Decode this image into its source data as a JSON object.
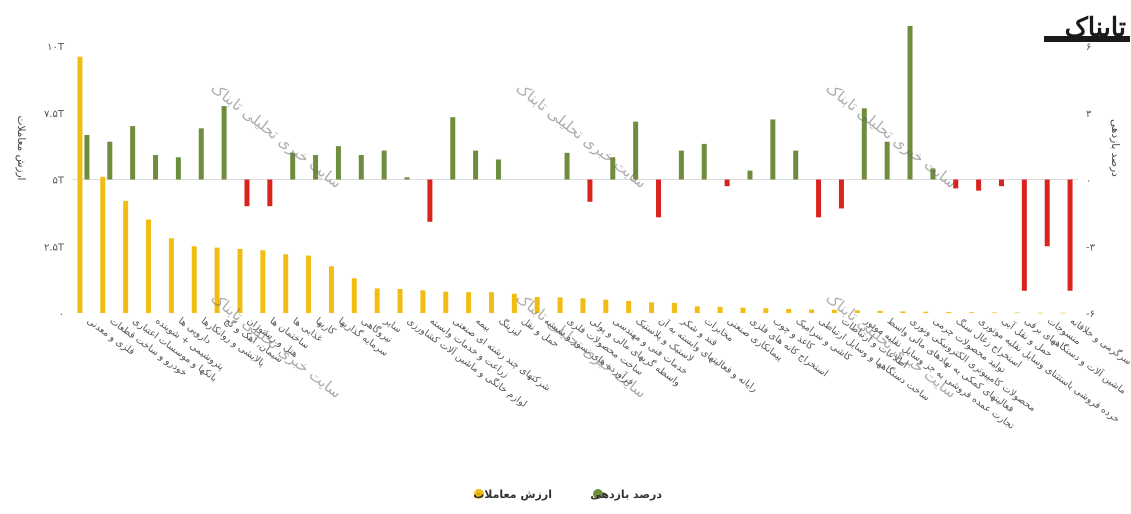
{
  "chart_data": {
    "type": "bar",
    "logo": "تابناک",
    "watermark": "سایت خبری تحلیلی تابناک",
    "ylabel_left": "ارزش معاملات",
    "ylabel_right": "درصد بازدهی",
    "y_left_ticks": [
      "۰",
      "۲.۵T",
      "۵T",
      "۷.۵T",
      "۱۰T"
    ],
    "y_left_lim": [
      0,
      10
    ],
    "y_right_ticks": [
      "-۶",
      "-۳",
      "۰",
      "۳",
      "۶"
    ],
    "y_right_lim": [
      -6,
      6
    ],
    "legend_position": "bottom",
    "categories": [
      "فلزی و معدنی",
      "خودرو و ساخت قطعات",
      "بانکها و موسسات اعتباری",
      "پتروشیمی + شوینده",
      "دارویی ها",
      "پالایشی و روانکارها",
      "سیمان، آهک و گچ",
      "هتل و رستوران",
      "ساختمان ها",
      "غذایی ها",
      "کاریها",
      "سرمایه گذاریها",
      "نیروگاهی",
      "سایر",
      "لوازم خانگی و ماشین آلات کشاورزی",
      "زراعت و خدمات وابسته",
      "شرکتهای چند رشته ای صنعتی",
      "بیمه",
      "لیزینگ",
      "حمل و نقل",
      "فرآورده های نسوز و شیشه",
      "ساخت محصولات فلزی",
      "واسطه گریهای مالی و پولی",
      "خدمات فنی و مهندسی",
      "لاستیک و پلاستیک",
      "رایانه و فعالیتهای وابسته به آن",
      "قند و شکر",
      "مخابرات",
      "پیمانکاری صنعتی",
      "استخراج کانه های فلزی",
      "کاغذ و چوب",
      "کاشی و سرامیک",
      "ساخت دستگاهها و وسایل ارتباطی",
      "اطلاعات و ارتباطات",
      "تجارت عمده فروشی به جز وسایل نقلیه موتور",
      "فعالیتهای کمکی به نهادهای مالی واسط",
      "محصولات کامپیوتری الکترونیکی ونوری",
      "تولید محصولات چرمی",
      "استخراج زغال سنگ",
      "خرده فروشی باستثنای وسایل نقلیه موتوری",
      "حمل و نقل آبی",
      "ماشین آلات و دستگاههای برقی",
      "منسوجات",
      "فعالیت های هنری، سرگرمی و خلاقانه"
    ],
    "series": [
      {
        "name": "ارزش معاملات",
        "color": "#f2bd12",
        "axis": "left",
        "values": [
          9.6,
          5.1,
          4.2,
          3.5,
          2.8,
          2.5,
          2.45,
          2.4,
          2.35,
          2.2,
          2.15,
          1.75,
          1.3,
          0.92,
          0.9,
          0.85,
          0.8,
          0.78,
          0.78,
          0.72,
          0.6,
          0.58,
          0.55,
          0.5,
          0.45,
          0.4,
          0.38,
          0.25,
          0.23,
          0.2,
          0.18,
          0.15,
          0.13,
          0.12,
          0.1,
          0.08,
          0.06,
          0.05,
          0.04,
          0.03,
          0.02,
          0.02,
          0.01,
          0.01
        ]
      },
      {
        "name": "درصد بازدهی",
        "color": "#6f8d3e",
        "negative_color": "#d9231f",
        "axis": "right",
        "values": [
          2.0,
          1.7,
          2.4,
          1.1,
          1.0,
          2.3,
          3.3,
          -1.2,
          -1.2,
          1.2,
          1.1,
          1.5,
          1.1,
          1.3,
          0.1,
          -1.9,
          2.8,
          1.3,
          0.9,
          0.0,
          0.0,
          1.2,
          -1.0,
          1.0,
          2.6,
          -1.7,
          1.3,
          1.6,
          -0.3,
          0.4,
          2.7,
          1.3,
          -1.7,
          -1.3,
          3.2,
          1.7,
          6.9,
          0.5,
          -0.4,
          -0.5,
          -0.3,
          -5.0,
          -3.0,
          -5.0
        ]
      }
    ]
  }
}
